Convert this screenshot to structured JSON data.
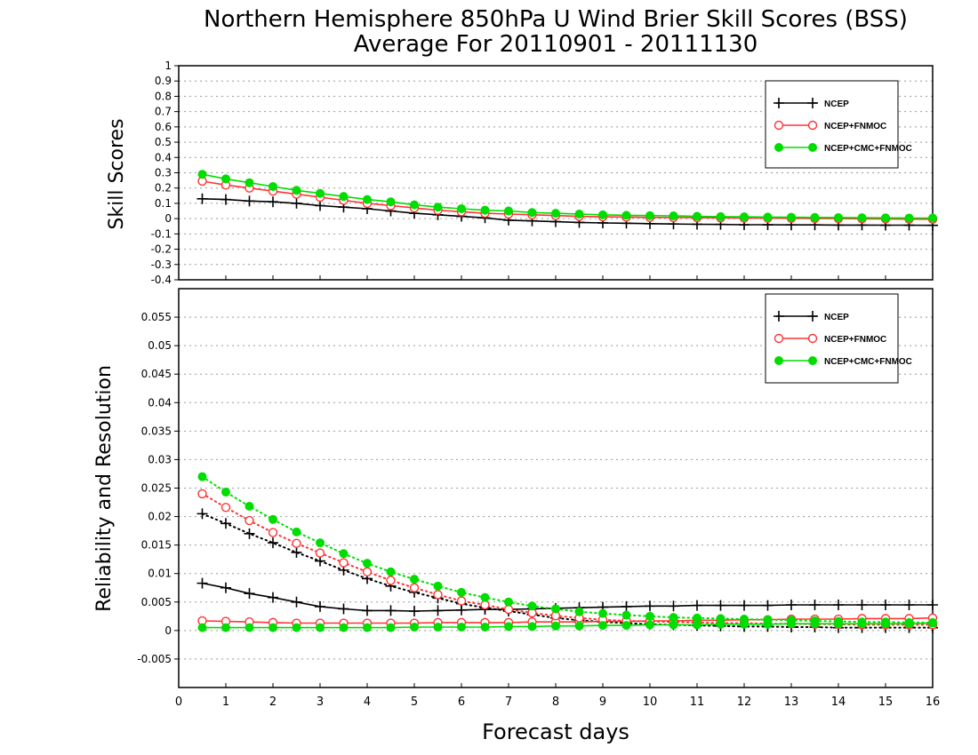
{
  "title_line1": "Northern Hemisphere 850hPa U Wind Brier Skill Scores (BSS)",
  "title_line2": "Average For 20110901 - 20111130",
  "xlabel": "Forecast days",
  "colors": {
    "NCEP": "#000000",
    "NCEP+FNMOC": "#ff3333",
    "NCEP+CMC+FNMOC": "#00dd00"
  },
  "chart_data": [
    {
      "type": "line",
      "ylabel": "Skill Scores",
      "xlim": [
        0,
        16
      ],
      "ylim": [
        -0.4,
        1
      ],
      "grid": true,
      "legend_position": "top-right",
      "x_ticks": [
        "0",
        "1",
        "2",
        "3",
        "4",
        "5",
        "6",
        "7",
        "8",
        "9",
        "10",
        "11",
        "12",
        "13",
        "14",
        "15",
        "16"
      ],
      "y_ticks": [
        "-0.4",
        "-0.3",
        "-0.2",
        "-0.1",
        "0",
        "0.1",
        "0.2",
        "0.3",
        "0.4",
        "0.5",
        "0.6",
        "0.7",
        "0.8",
        "0.9",
        "1"
      ],
      "x": [
        0.5,
        1,
        1.5,
        2,
        2.5,
        3,
        3.5,
        4,
        4.5,
        5,
        5.5,
        6,
        6.5,
        7,
        7.5,
        8,
        8.5,
        9,
        9.5,
        10,
        10.5,
        11,
        11.5,
        12,
        12.5,
        13,
        13.5,
        14,
        14.5,
        15,
        15.5,
        16
      ],
      "series": [
        {
          "name": "NCEP",
          "marker": "plus",
          "line": "solid",
          "values": [
            0.13,
            0.125,
            0.115,
            0.11,
            0.1,
            0.085,
            0.075,
            0.065,
            0.05,
            0.035,
            0.025,
            0.015,
            0.005,
            -0.01,
            -0.015,
            -0.02,
            -0.025,
            -0.028,
            -0.03,
            -0.033,
            -0.035,
            -0.037,
            -0.038,
            -0.04,
            -0.04,
            -0.041,
            -0.041,
            -0.042,
            -0.042,
            -0.043,
            -0.043,
            -0.044
          ]
        },
        {
          "name": "NCEP+FNMOC",
          "marker": "open-circle",
          "line": "solid",
          "values": [
            0.245,
            0.22,
            0.2,
            0.18,
            0.16,
            0.14,
            0.12,
            0.1,
            0.085,
            0.07,
            0.055,
            0.045,
            0.035,
            0.03,
            0.025,
            0.02,
            0.015,
            0.012,
            0.01,
            0.008,
            0.007,
            0.006,
            0.005,
            0.004,
            0.003,
            0.002,
            0.001,
            0,
            -0.001,
            -0.002,
            -0.003,
            -0.004
          ]
        },
        {
          "name": "NCEP+CMC+FNMOC",
          "marker": "filled-circle",
          "line": "solid",
          "values": [
            0.29,
            0.26,
            0.235,
            0.21,
            0.185,
            0.165,
            0.145,
            0.125,
            0.11,
            0.09,
            0.075,
            0.065,
            0.055,
            0.05,
            0.04,
            0.035,
            0.03,
            0.025,
            0.022,
            0.02,
            0.018,
            0.015,
            0.013,
            0.012,
            0.01,
            0.009,
            0.008,
            0.007,
            0.006,
            0.005,
            0.004,
            0.004
          ]
        }
      ]
    },
    {
      "type": "line",
      "ylabel": "Reliability and Resolution",
      "xlim": [
        0,
        16
      ],
      "ylim": [
        -0.01,
        0.06
      ],
      "grid": true,
      "legend_position": "top-right",
      "x_ticks": [
        "0",
        "1",
        "2",
        "3",
        "4",
        "5",
        "6",
        "7",
        "8",
        "9",
        "10",
        "11",
        "12",
        "13",
        "14",
        "15",
        "16"
      ],
      "y_ticks": [
        "-0.005",
        "0",
        "0.005",
        "0.01",
        "0.015",
        "0.02",
        "0.025",
        "0.03",
        "0.035",
        "0.04",
        "0.045",
        "0.05",
        "0.055"
      ],
      "x": [
        0.5,
        1,
        1.5,
        2,
        2.5,
        3,
        3.5,
        4,
        4.5,
        5,
        5.5,
        6,
        6.5,
        7,
        7.5,
        8,
        8.5,
        9,
        9.5,
        10,
        10.5,
        11,
        11.5,
        12,
        12.5,
        13,
        13.5,
        14,
        14.5,
        15,
        15.5,
        16
      ],
      "series": [
        {
          "name": "NCEP",
          "marker": "plus",
          "line": "solid",
          "values": [
            0.0083,
            0.0075,
            0.0065,
            0.0058,
            0.005,
            0.0042,
            0.0038,
            0.0035,
            0.0035,
            0.0034,
            0.0035,
            0.0036,
            0.0037,
            0.0037,
            0.0038,
            0.0039,
            0.004,
            0.0041,
            0.0042,
            0.0043,
            0.0043,
            0.0044,
            0.0044,
            0.0044,
            0.0044,
            0.0045,
            0.0045,
            0.0045,
            0.0045,
            0.0045,
            0.0045,
            0.0045
          ]
        },
        {
          "name": "NCEP",
          "marker": "plus",
          "line": "dotted",
          "values": [
            0.0205,
            0.0188,
            0.017,
            0.0154,
            0.0137,
            0.0122,
            0.0106,
            0.0091,
            0.0078,
            0.0067,
            0.0057,
            0.0047,
            0.004,
            0.0034,
            0.0028,
            0.0022,
            0.0018,
            0.0015,
            0.0013,
            0.0011,
            0.001,
            0.0009,
            0.0008,
            0.0007,
            0.0007,
            0.0006,
            0.0006,
            0.0005,
            0.0005,
            0.0005,
            0.0005,
            0.0005
          ]
        },
        {
          "name": "NCEP+FNMOC",
          "marker": "open-circle",
          "line": "solid",
          "values": [
            0.0017,
            0.0016,
            0.0015,
            0.0014,
            0.0013,
            0.0013,
            0.0013,
            0.0013,
            0.0013,
            0.0013,
            0.0014,
            0.0014,
            0.0014,
            0.0014,
            0.0015,
            0.0015,
            0.0015,
            0.0016,
            0.0016,
            0.0017,
            0.0017,
            0.0018,
            0.0018,
            0.0019,
            0.0019,
            0.002,
            0.002,
            0.002,
            0.0021,
            0.0021,
            0.0021,
            0.0022
          ]
        },
        {
          "name": "NCEP+FNMOC",
          "marker": "open-circle",
          "line": "dotted",
          "values": [
            0.024,
            0.0216,
            0.0193,
            0.0172,
            0.0153,
            0.0136,
            0.0119,
            0.0103,
            0.0088,
            0.0075,
            0.0063,
            0.0052,
            0.0045,
            0.0037,
            0.0031,
            0.0026,
            0.0022,
            0.0019,
            0.0017,
            0.0016,
            0.0015,
            0.0014,
            0.0013,
            0.0013,
            0.0012,
            0.0012,
            0.0011,
            0.0011,
            0.001,
            0.001,
            0.001,
            0.001
          ]
        },
        {
          "name": "NCEP+CMC+FNMOC",
          "marker": "filled-circle",
          "line": "solid",
          "values": [
            0.0005,
            0.0005,
            0.0005,
            0.0005,
            0.0005,
            0.0005,
            0.0005,
            0.0005,
            0.0005,
            0.0006,
            0.0006,
            0.0006,
            0.0006,
            0.0007,
            0.0007,
            0.0008,
            0.0008,
            0.0009,
            0.0009,
            0.001,
            0.001,
            0.001,
            0.0011,
            0.0011,
            0.0011,
            0.0012,
            0.0012,
            0.0012,
            0.0012,
            0.0012,
            0.0012,
            0.0013
          ]
        },
        {
          "name": "NCEP+CMC+FNMOC",
          "marker": "filled-circle",
          "line": "dotted",
          "values": [
            0.027,
            0.0243,
            0.0218,
            0.0195,
            0.0173,
            0.0154,
            0.0135,
            0.0118,
            0.0103,
            0.009,
            0.0078,
            0.0067,
            0.0058,
            0.005,
            0.0043,
            0.0038,
            0.0033,
            0.003,
            0.0027,
            0.0025,
            0.0023,
            0.0022,
            0.0021,
            0.002,
            0.0019,
            0.0018,
            0.0017,
            0.0016,
            0.0015,
            0.0015,
            0.0014,
            0.0014
          ]
        }
      ]
    }
  ]
}
